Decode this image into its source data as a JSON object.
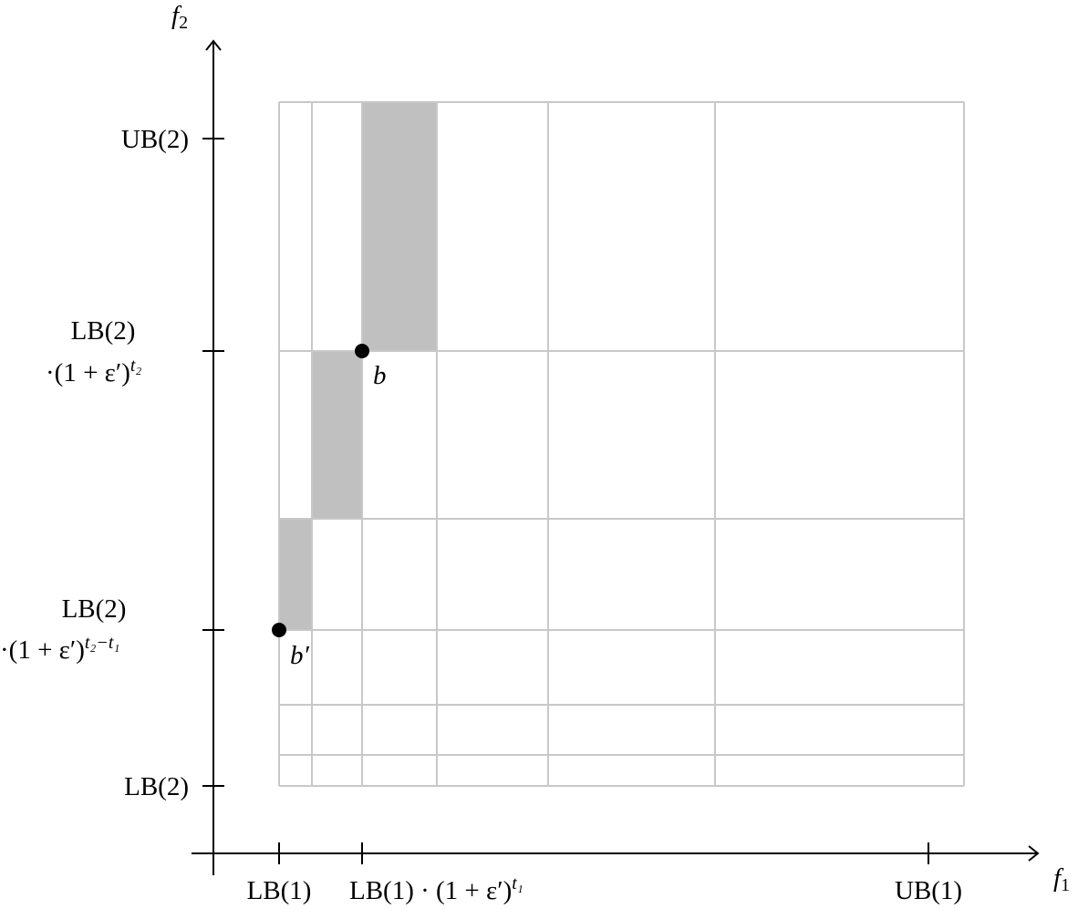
{
  "axes": {
    "y_label": {
      "base": "f",
      "sub": "2"
    },
    "x_label": {
      "base": "f",
      "sub": "1"
    }
  },
  "y_ticks": [
    {
      "line1": "UB(2)"
    },
    {
      "line1": "LB(2)",
      "line2": "·(1 + ε′)",
      "sup": "t₂"
    },
    {
      "line1": "LB(2)",
      "line2": "·(1 + ε′)",
      "sup": "t₂−t₁"
    },
    {
      "line1": "LB(2)"
    }
  ],
  "x_ticks": [
    {
      "text": "LB(1)"
    },
    {
      "text": "LB(1) · (1 + ε′)",
      "sup": "t₁"
    },
    {
      "text": "UB(1)"
    }
  ],
  "points": [
    {
      "label": "b"
    },
    {
      "label": "b′"
    }
  ]
}
